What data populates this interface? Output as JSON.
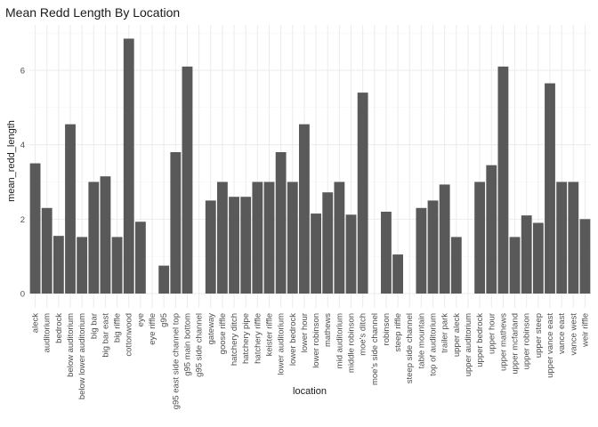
{
  "chart_data": {
    "type": "bar",
    "title": "Mean Redd Length By Location",
    "xlabel": "location",
    "ylabel": "mean_redd_length",
    "ylim": [
      0,
      7.1
    ],
    "yticks": [
      0,
      2,
      4,
      6
    ],
    "grid": true,
    "legend": "none",
    "bar_color": "#595959",
    "categories": [
      "aleck",
      "auditorium",
      "bedrock",
      "below auditorium",
      "below lower auditorium",
      "big bar",
      "big bar east",
      "big riffle",
      "cottonwood",
      "eye",
      "eye riffle",
      "g95",
      "g95 east side channel top",
      "g95 main bottom",
      "g95 side channel",
      "gateway",
      "goose riffle",
      "hatchery ditch",
      "hatchery pipe",
      "hatchery riffle",
      "keister riffle",
      "lower auditorium",
      "lower bedrock",
      "lower hour",
      "lower robinson",
      "mathews",
      "mid auditorium",
      "middle robinson",
      "moe's ditch",
      "moe's side channel",
      "robinson",
      "steep riffle",
      "steep side channel",
      "table mountain",
      "top of auditorium",
      "trailer park",
      "upper aleck",
      "upper auditorium",
      "upper bedrock",
      "upper hour",
      "upper mathews",
      "upper mcfarland",
      "upper robinson",
      "upper steep",
      "upper vance east",
      "vance east",
      "vance west",
      "weir riffle"
    ],
    "values": [
      3.5,
      2.3,
      1.55,
      4.55,
      1.52,
      3.0,
      3.15,
      1.52,
      6.85,
      1.93,
      0,
      0.75,
      3.8,
      6.1,
      0,
      2.5,
      3.0,
      2.6,
      2.6,
      3.0,
      3.0,
      3.8,
      3.0,
      4.55,
      2.15,
      2.72,
      3.0,
      2.12,
      5.4,
      0,
      2.2,
      1.05,
      0,
      2.3,
      2.5,
      2.93,
      1.52,
      0,
      3.0,
      3.45,
      6.1,
      1.52,
      2.1,
      1.9,
      5.65,
      3.0,
      3.0,
      2.0
    ]
  }
}
